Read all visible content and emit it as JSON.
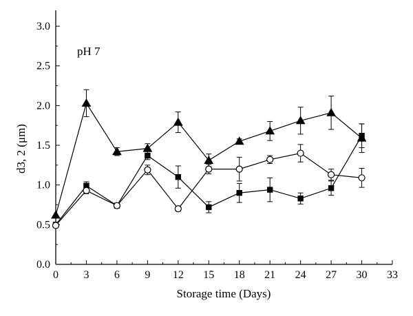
{
  "chart_data": {
    "type": "line",
    "annotation": "pH 7",
    "xlabel": "Storage time (Days)",
    "ylabel": "d3, 2 (μm)",
    "xlim": [
      0,
      33
    ],
    "ylim": [
      0,
      3.2
    ],
    "xticks": [
      0,
      3,
      6,
      9,
      12,
      15,
      18,
      21,
      24,
      27,
      30,
      33
    ],
    "yticks": [
      0.0,
      0.5,
      1.0,
      1.5,
      2.0,
      2.5,
      3.0
    ],
    "ytick_labels": [
      "0.0",
      "0.5",
      "1.0",
      "1.5",
      "2.0",
      "2.5",
      "3.0"
    ],
    "grid": false,
    "x": [
      0,
      3,
      6,
      9,
      12,
      15,
      18,
      21,
      24,
      27,
      30
    ],
    "series": [
      {
        "marker": "triangle-filled",
        "values": [
          0.62,
          2.03,
          1.42,
          1.46,
          1.79,
          1.31,
          1.55,
          1.68,
          1.81,
          1.91,
          1.59
        ],
        "errors": [
          0.0,
          0.17,
          0.05,
          0.06,
          0.13,
          0.08,
          0.03,
          0.12,
          0.17,
          0.21,
          0.18
        ]
      },
      {
        "marker": "square-filled",
        "values": [
          0.5,
          0.99,
          0.74,
          1.37,
          1.1,
          0.72,
          0.9,
          0.94,
          0.83,
          0.96,
          1.62
        ],
        "errors": [
          0.0,
          0.05,
          0.02,
          0.05,
          0.14,
          0.07,
          0.12,
          0.15,
          0.07,
          0.09,
          0.15
        ]
      },
      {
        "marker": "circle-open",
        "values": [
          0.49,
          0.93,
          0.74,
          1.19,
          0.7,
          1.2,
          1.2,
          1.32,
          1.4,
          1.13,
          1.09
        ],
        "errors": [
          0.0,
          0.04,
          0.02,
          0.06,
          0.03,
          0.06,
          0.15,
          0.05,
          0.11,
          0.07,
          0.12
        ]
      }
    ]
  }
}
